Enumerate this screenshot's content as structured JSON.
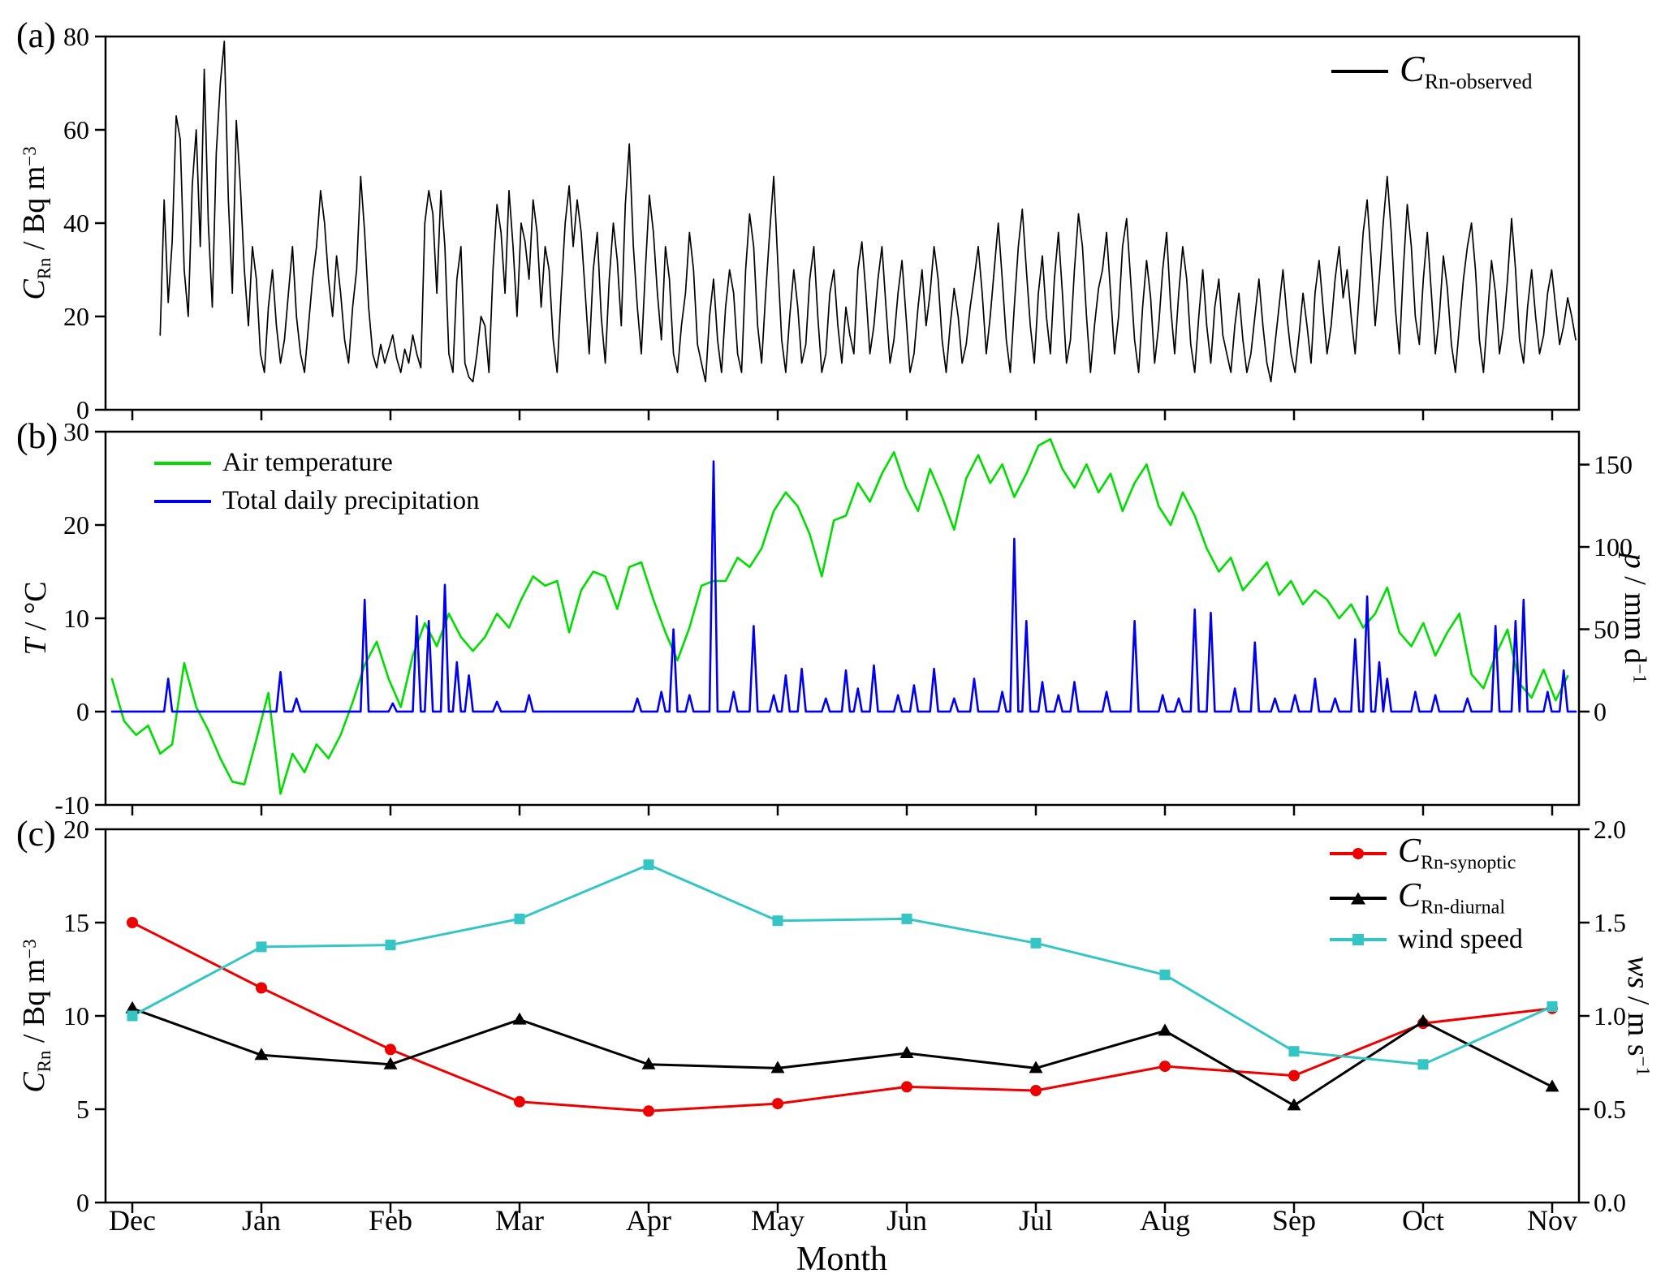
{
  "labels": {
    "panel_a": "(a)",
    "panel_b": "(b)",
    "panel_c": "(c)",
    "xlabel": "Month",
    "a_y": {
      "main": "C",
      "sub": "Rn",
      "rest": " / Bq m",
      "exp": "−3"
    },
    "b_y_left": {
      "main": "T",
      "rest": " / °C"
    },
    "b_y_right": {
      "main": "p",
      "rest": " / mm d",
      "exp": "−1"
    },
    "c_y_left": {
      "main": "C",
      "sub": "Rn",
      "rest": " / Bq m",
      "exp": "−3"
    },
    "c_y_right": {
      "main": "ws",
      "rest": " / m s",
      "exp": "−1"
    }
  },
  "legend_a": {
    "main": "C",
    "sub": "Rn-observed"
  },
  "legend_b": [
    {
      "label": "Air temperature"
    },
    {
      "label": "Total daily precipitation"
    }
  ],
  "legend_c": [
    {
      "main": "C",
      "sub": "Rn-synoptic"
    },
    {
      "main": "C",
      "sub": "Rn-diurnal"
    },
    {
      "label": "wind speed"
    }
  ],
  "colors": {
    "observed": "#000000",
    "temperature": "#00dd00",
    "precipitation": "#0000ee",
    "synoptic": "#ee0000",
    "diurnal": "#000000",
    "wind": "#35c5c5"
  },
  "months": [
    "Dec",
    "Jan",
    "Feb",
    "Mar",
    "Apr",
    "May",
    "Jun",
    "Jul",
    "Aug",
    "Sep",
    "Oct",
    "Nov"
  ],
  "chart_data": [
    {
      "id": "a",
      "type": "line",
      "ylabel": "C_Rn / Bq m^-3",
      "ylim": [
        0,
        80
      ],
      "yticks": [
        0,
        20,
        40,
        60,
        80
      ],
      "x_axis": "days Dec 1 – Nov 30",
      "series": [
        {
          "name": "C_Rn-observed",
          "color_key": "observed",
          "x_start_day": 12,
          "x_step_days": 1,
          "values": [
            16,
            45,
            23,
            36,
            63,
            58,
            30,
            20,
            48,
            60,
            35,
            73,
            40,
            22,
            55,
            70,
            79,
            45,
            25,
            62,
            48,
            30,
            18,
            35,
            28,
            12,
            8,
            22,
            30,
            18,
            10,
            15,
            25,
            35,
            20,
            12,
            8,
            18,
            28,
            35,
            47,
            40,
            28,
            20,
            33,
            25,
            15,
            10,
            22,
            30,
            50,
            38,
            22,
            12,
            9,
            14,
            10,
            13,
            16,
            11,
            8,
            13,
            10,
            16,
            12,
            9,
            40,
            47,
            42,
            25,
            47,
            35,
            12,
            8,
            28,
            35,
            10,
            7,
            6,
            12,
            20,
            18,
            8,
            30,
            44,
            38,
            25,
            47,
            35,
            20,
            40,
            36,
            28,
            45,
            38,
            22,
            35,
            30,
            15,
            8,
            25,
            40,
            48,
            35,
            45,
            38,
            25,
            12,
            30,
            38,
            20,
            10,
            28,
            40,
            32,
            18,
            44,
            57,
            35,
            22,
            12,
            30,
            46,
            38,
            25,
            15,
            35,
            28,
            12,
            8,
            18,
            25,
            38,
            30,
            14,
            10,
            6,
            20,
            28,
            15,
            8,
            22,
            30,
            25,
            12,
            8,
            30,
            42,
            35,
            18,
            10,
            25,
            38,
            50,
            32,
            15,
            8,
            20,
            30,
            22,
            10,
            14,
            28,
            35,
            20,
            8,
            12,
            25,
            30,
            18,
            10,
            22,
            16,
            12,
            30,
            36,
            25,
            12,
            18,
            28,
            35,
            22,
            10,
            15,
            25,
            32,
            20,
            8,
            12,
            22,
            30,
            18,
            25,
            35,
            28,
            15,
            8,
            18,
            26,
            20,
            10,
            14,
            22,
            28,
            35,
            25,
            12,
            20,
            30,
            40,
            28,
            15,
            8,
            22,
            35,
            43,
            30,
            18,
            10,
            25,
            33,
            20,
            12,
            28,
            38,
            25,
            10,
            15,
            30,
            42,
            35,
            20,
            8,
            18,
            26,
            30,
            38,
            25,
            12,
            20,
            35,
            41,
            28,
            15,
            8,
            22,
            32,
            24,
            10,
            18,
            30,
            38,
            22,
            12,
            25,
            35,
            28,
            14,
            8,
            20,
            30,
            18,
            10,
            22,
            28,
            16,
            12,
            8,
            18,
            25,
            15,
            8,
            12,
            20,
            28,
            18,
            10,
            6,
            14,
            22,
            30,
            20,
            12,
            8,
            16,
            25,
            18,
            10,
            25,
            32,
            22,
            12,
            18,
            28,
            35,
            24,
            30,
            20,
            12,
            25,
            38,
            45,
            32,
            18,
            28,
            40,
            50,
            38,
            22,
            12,
            30,
            44,
            35,
            20,
            14,
            28,
            38,
            25,
            12,
            20,
            33,
            26,
            14,
            8,
            18,
            28,
            35,
            40,
            30,
            15,
            8,
            20,
            32,
            25,
            12,
            18,
            28,
            41,
            30,
            15,
            10,
            22,
            30,
            20,
            12,
            16,
            25,
            30,
            22,
            14,
            18,
            24,
            20,
            15
          ]
        }
      ]
    },
    {
      "id": "b",
      "type": "line",
      "ylabel_left": "T / °C",
      "ylabel_right": "p / mm d^-1",
      "ylim_left": [
        -10,
        30
      ],
      "yticks_left": [
        -10,
        0,
        10,
        20,
        30
      ],
      "ylim_right": [
        -56.7,
        170
      ],
      "yticks_right": [
        0,
        50,
        100,
        150
      ],
      "series": [
        {
          "name": "Air temperature",
          "axis": "left",
          "color_key": "temperature",
          "x_step_days": 3,
          "values": [
            3.5,
            -1,
            -2.5,
            -1.5,
            -4.5,
            -3.5,
            5.2,
            0.5,
            -2,
            -5,
            -7.5,
            -7.8,
            -3,
            2,
            -8.8,
            -4.5,
            -6.5,
            -3.5,
            -5,
            -2.5,
            1,
            5,
            7.5,
            3.5,
            0.5,
            6,
            9.5,
            7,
            10.5,
            8,
            6.5,
            8,
            10.5,
            9,
            12,
            14.5,
            13.5,
            14,
            8.5,
            13,
            15,
            14.5,
            11,
            15.5,
            16,
            12,
            8.5,
            5.5,
            9,
            13.5,
            14,
            14,
            16.5,
            15.5,
            17.5,
            21.5,
            23.5,
            22,
            19,
            14.5,
            20.5,
            21,
            24.5,
            22.5,
            25.5,
            27.8,
            24,
            21.5,
            26,
            23,
            19.5,
            25,
            27.5,
            24.5,
            26.5,
            23,
            25.5,
            28.5,
            29.2,
            26,
            24,
            26.5,
            23.5,
            25.5,
            21.5,
            24.5,
            26.5,
            22,
            20,
            23.5,
            21,
            17.5,
            15,
            16.5,
            13,
            14.5,
            16,
            12.5,
            14,
            11.5,
            13,
            12,
            10,
            11.5,
            9,
            10.5,
            13.3,
            8.5,
            7,
            9.5,
            6,
            8.5,
            10.5,
            4,
            2.5,
            6,
            8.8,
            3,
            1.5,
            4.5,
            1.2,
            3.8
          ]
        },
        {
          "name": "Total daily precipitation",
          "axis": "right",
          "color_key": "precipitation",
          "spikes_day_mm": [
            [
              14,
              20
            ],
            [
              42,
              24
            ],
            [
              46,
              8
            ],
            [
              63,
              68
            ],
            [
              70,
              5
            ],
            [
              76,
              58
            ],
            [
              79,
              55
            ],
            [
              83,
              77
            ],
            [
              86,
              30
            ],
            [
              89,
              22
            ],
            [
              96,
              6
            ],
            [
              104,
              10
            ],
            [
              131,
              8
            ],
            [
              137,
              12
            ],
            [
              140,
              50
            ],
            [
              144,
              10
            ],
            [
              150,
              152
            ],
            [
              155,
              12
            ],
            [
              160,
              52
            ],
            [
              165,
              10
            ],
            [
              168,
              22
            ],
            [
              172,
              26
            ],
            [
              178,
              8
            ],
            [
              183,
              25
            ],
            [
              186,
              14
            ],
            [
              190,
              28
            ],
            [
              196,
              10
            ],
            [
              200,
              16
            ],
            [
              205,
              26
            ],
            [
              210,
              8
            ],
            [
              215,
              20
            ],
            [
              222,
              12
            ],
            [
              225,
              105
            ],
            [
              228,
              55
            ],
            [
              232,
              18
            ],
            [
              236,
              10
            ],
            [
              240,
              18
            ],
            [
              248,
              12
            ],
            [
              255,
              55
            ],
            [
              262,
              10
            ],
            [
              266,
              8
            ],
            [
              270,
              62
            ],
            [
              274,
              60
            ],
            [
              280,
              14
            ],
            [
              285,
              42
            ],
            [
              290,
              8
            ],
            [
              295,
              10
            ],
            [
              300,
              20
            ],
            [
              305,
              8
            ],
            [
              310,
              44
            ],
            [
              313,
              70
            ],
            [
              316,
              30
            ],
            [
              318,
              20
            ],
            [
              325,
              12
            ],
            [
              330,
              10
            ],
            [
              338,
              8
            ],
            [
              345,
              52
            ],
            [
              350,
              55
            ],
            [
              352,
              68
            ],
            [
              358,
              12
            ],
            [
              362,
              25
            ]
          ]
        }
      ]
    },
    {
      "id": "c",
      "type": "line",
      "categories": [
        "Dec",
        "Jan",
        "Feb",
        "Mar",
        "Apr",
        "May",
        "Jun",
        "Jul",
        "Aug",
        "Sep",
        "Oct",
        "Nov"
      ],
      "xlabel": "Month",
      "ylabel_left": "C_Rn / Bq m^-3",
      "ylabel_right": "ws / m s^-1",
      "ylim_left": [
        0,
        20
      ],
      "yticks_left": [
        "0",
        "5",
        "10",
        "15",
        "20"
      ],
      "ylim_right": [
        0,
        2
      ],
      "yticks_right": [
        "0.0",
        "0.5",
        "1.0",
        "1.5",
        "2.0"
      ],
      "legend_position": "top-right",
      "series": [
        {
          "name": "C_Rn-synoptic",
          "axis": "left",
          "marker": "circle",
          "color_key": "synoptic",
          "values": [
            15.0,
            11.5,
            8.2,
            5.4,
            4.9,
            5.3,
            6.2,
            6.0,
            7.3,
            6.8,
            9.6,
            10.4
          ]
        },
        {
          "name": "C_Rn-diurnal",
          "axis": "left",
          "marker": "triangle",
          "color_key": "diurnal",
          "values": [
            10.4,
            7.9,
            7.4,
            9.8,
            7.4,
            7.2,
            8.0,
            7.2,
            9.2,
            5.2,
            9.7,
            6.2
          ]
        },
        {
          "name": "wind speed",
          "axis": "right",
          "marker": "square",
          "color_key": "wind",
          "values": [
            1.0,
            1.37,
            1.38,
            1.52,
            1.81,
            1.51,
            1.52,
            1.39,
            1.22,
            0.81,
            0.74,
            1.05
          ]
        }
      ]
    }
  ]
}
